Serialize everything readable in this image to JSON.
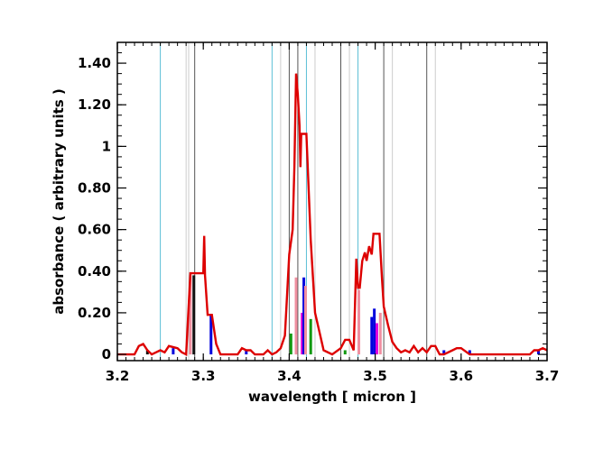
{
  "chart_data": {
    "type": "line",
    "xlabel": "wavelength [ micron ]",
    "ylabel": "absorbance ( arbitrary units )",
    "xlim": [
      3.2,
      3.7
    ],
    "ylim": [
      -0.03,
      1.5
    ],
    "x_ticks": [
      3.2,
      3.3,
      3.4,
      3.5,
      3.6,
      3.7
    ],
    "x_tick_labels": [
      "3.2",
      "3.3",
      "3.4",
      "3.5",
      "3.6",
      "3.7"
    ],
    "y_ticks": [
      0,
      0.2,
      0.4,
      0.6,
      0.8,
      1.0,
      1.2,
      1.4
    ],
    "y_tick_labels": [
      "0",
      "0.20",
      "0.40",
      "0.60",
      "0.80",
      "1",
      "1.20",
      "1.40"
    ],
    "grid": false,
    "vertical_lines": [
      {
        "x": 3.25,
        "color": "#5bbfd6"
      },
      {
        "x": 3.28,
        "color": "#cccccc"
      },
      {
        "x": 3.283,
        "color": "#cccccc"
      },
      {
        "x": 3.29,
        "color": "#555555"
      },
      {
        "x": 3.38,
        "color": "#5bbfd6"
      },
      {
        "x": 3.39,
        "color": "#cccccc"
      },
      {
        "x": 3.4,
        "color": "#555555"
      },
      {
        "x": 3.41,
        "color": "#555555"
      },
      {
        "x": 3.42,
        "color": "#5bbfd6"
      },
      {
        "x": 3.43,
        "color": "#cccccc"
      },
      {
        "x": 3.46,
        "color": "#555555"
      },
      {
        "x": 3.47,
        "color": "#cccccc"
      },
      {
        "x": 3.48,
        "color": "#5bbfd6"
      },
      {
        "x": 3.51,
        "color": "#555555"
      },
      {
        "x": 3.52,
        "color": "#cccccc"
      },
      {
        "x": 3.56,
        "color": "#555555"
      },
      {
        "x": 3.57,
        "color": "#cccccc"
      }
    ],
    "sticks": [
      {
        "x": 3.235,
        "y": 0.02,
        "color": "#111111"
      },
      {
        "x": 3.265,
        "y": 0.03,
        "color": "#0000dd"
      },
      {
        "x": 3.285,
        "y": 0.38,
        "color": "#f08fa0"
      },
      {
        "x": 3.289,
        "y": 0.38,
        "color": "#111111"
      },
      {
        "x": 3.309,
        "y": 0.19,
        "color": "#0000dd"
      },
      {
        "x": 3.35,
        "y": 0.02,
        "color": "#0000dd"
      },
      {
        "x": 3.402,
        "y": 0.1,
        "color": "#119911"
      },
      {
        "x": 3.408,
        "y": 0.37,
        "color": "#f08fa0"
      },
      {
        "x": 3.415,
        "y": 0.2,
        "color": "#dd00dd"
      },
      {
        "x": 3.417,
        "y": 0.37,
        "color": "#0000dd"
      },
      {
        "x": 3.419,
        "y": 0.33,
        "color": "#f08fa0"
      },
      {
        "x": 3.425,
        "y": 0.17,
        "color": "#119911"
      },
      {
        "x": 3.465,
        "y": 0.02,
        "color": "#119911"
      },
      {
        "x": 3.481,
        "y": 0.31,
        "color": "#f08fa0"
      },
      {
        "x": 3.496,
        "y": 0.18,
        "color": "#0000dd"
      },
      {
        "x": 3.499,
        "y": 0.22,
        "color": "#0000dd"
      },
      {
        "x": 3.502,
        "y": 0.15,
        "color": "#dd00dd"
      },
      {
        "x": 3.506,
        "y": 0.2,
        "color": "#f08fa0"
      },
      {
        "x": 3.58,
        "y": 0.02,
        "color": "#0000dd"
      },
      {
        "x": 3.61,
        "y": 0.02,
        "color": "#0000dd"
      },
      {
        "x": 3.69,
        "y": 0.02,
        "color": "#0000dd"
      }
    ],
    "series": [
      {
        "color": "#dd0000",
        "x": [
          3.2,
          3.22,
          3.225,
          3.23,
          3.235,
          3.24,
          3.245,
          3.25,
          3.255,
          3.26,
          3.27,
          3.275,
          3.28,
          3.285,
          3.287,
          3.29,
          3.295,
          3.3,
          3.301,
          3.302,
          3.305,
          3.31,
          3.315,
          3.32,
          3.34,
          3.345,
          3.35,
          3.355,
          3.36,
          3.37,
          3.375,
          3.38,
          3.385,
          3.39,
          3.395,
          3.4,
          3.404,
          3.406,
          3.408,
          3.41,
          3.412,
          3.413,
          3.414,
          3.416,
          3.418,
          3.42,
          3.425,
          3.43,
          3.44,
          3.45,
          3.46,
          3.465,
          3.47,
          3.475,
          3.478,
          3.48,
          3.482,
          3.485,
          3.488,
          3.49,
          3.493,
          3.496,
          3.498,
          3.5,
          3.505,
          3.508,
          3.51,
          3.515,
          3.52,
          3.525,
          3.53,
          3.535,
          3.54,
          3.545,
          3.55,
          3.555,
          3.56,
          3.565,
          3.57,
          3.575,
          3.58,
          3.59,
          3.595,
          3.6,
          3.61,
          3.62,
          3.68,
          3.685,
          3.69,
          3.695,
          3.7
        ],
        "y": [
          0,
          0,
          0.04,
          0.05,
          0.02,
          0,
          0.01,
          0.02,
          0.01,
          0.04,
          0.03,
          0.01,
          0,
          0.39,
          0.39,
          0.39,
          0.39,
          0.39,
          0.57,
          0.38,
          0.19,
          0.19,
          0.05,
          0,
          0,
          0.03,
          0.02,
          0.02,
          0,
          0,
          0.02,
          0,
          0.01,
          0.03,
          0.09,
          0.48,
          0.6,
          0.9,
          1.35,
          1.25,
          1.1,
          0.9,
          1.06,
          1.06,
          1.06,
          1.06,
          0.55,
          0.2,
          0.02,
          0,
          0.03,
          0.07,
          0.07,
          0.02,
          0.46,
          0.32,
          0.32,
          0.45,
          0.49,
          0.45,
          0.52,
          0.48,
          0.58,
          0.58,
          0.58,
          0.36,
          0.23,
          0.14,
          0.06,
          0.03,
          0.01,
          0.02,
          0.01,
          0.04,
          0.01,
          0.03,
          0.01,
          0.04,
          0.04,
          0,
          0,
          0.02,
          0.03,
          0.03,
          0,
          0,
          0,
          0.02,
          0.02,
          0.03,
          0.02
        ]
      }
    ]
  }
}
